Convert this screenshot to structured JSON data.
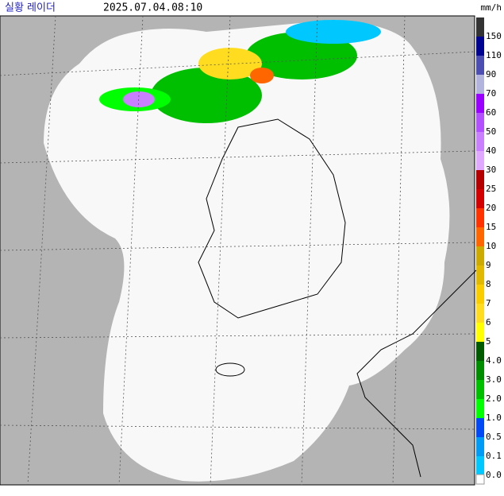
{
  "header": {
    "title": "실황 레이더",
    "timestamp": "2025.07.04.08:10"
  },
  "legend": {
    "unit": "mm/h",
    "top_color": "#333333",
    "items": [
      {
        "label": "150",
        "color": "#000390"
      },
      {
        "label": "110",
        "color": "#4c4eb1"
      },
      {
        "label": "90",
        "color": "#b3b4de"
      },
      {
        "label": "70",
        "color": "#9900ff"
      },
      {
        "label": "60",
        "color": "#b350ff"
      },
      {
        "label": "50",
        "color": "#c97fff"
      },
      {
        "label": "40",
        "color": "#e0a9ff"
      },
      {
        "label": "30",
        "color": "#b40000"
      },
      {
        "label": "25",
        "color": "#d20000"
      },
      {
        "label": "20",
        "color": "#ff3200"
      },
      {
        "label": "15",
        "color": "#ff6600"
      },
      {
        "label": "10",
        "color": "#ccaa00"
      },
      {
        "label": "9",
        "color": "#e0b900"
      },
      {
        "label": "8",
        "color": "#f9cd00"
      },
      {
        "label": "7",
        "color": "#ffdc1f"
      },
      {
        "label": "6",
        "color": "#ffff00"
      },
      {
        "label": "5",
        "color": "#005a00"
      },
      {
        "label": "4.0",
        "color": "#008c00"
      },
      {
        "label": "3.0",
        "color": "#00be00"
      },
      {
        "label": "2.0",
        "color": "#00ff00"
      },
      {
        "label": "1.0",
        "color": "#0049f5"
      },
      {
        "label": "0.5",
        "color": "#009bf5"
      },
      {
        "label": "0.1",
        "color": "#00c8ff"
      },
      {
        "label": "0.0",
        "color": "#ffffff"
      }
    ]
  }
}
